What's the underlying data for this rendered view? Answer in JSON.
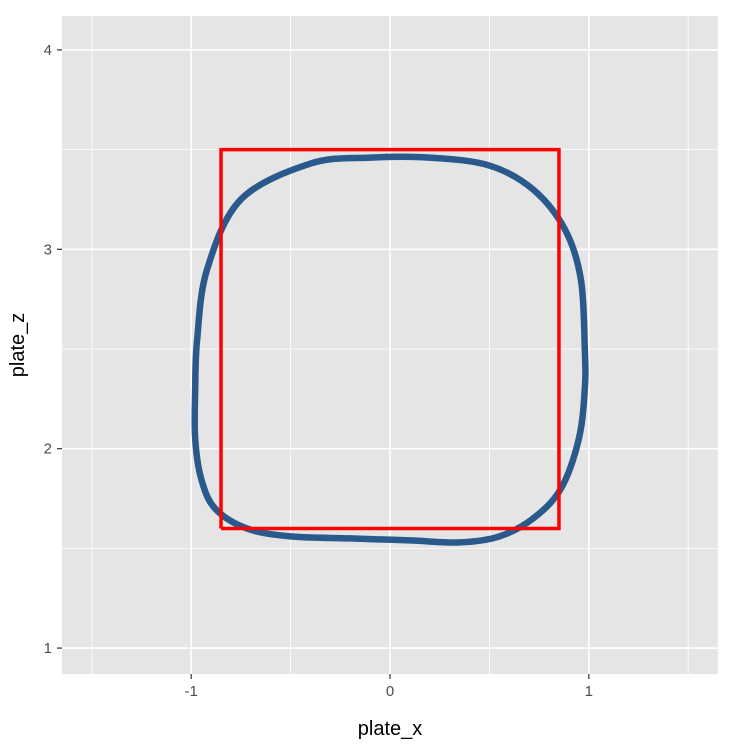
{
  "chart_data": {
    "type": "line",
    "title": "",
    "xlabel": "plate_x",
    "ylabel": "plate_z",
    "xlim": [
      -1.65,
      1.65
    ],
    "ylim": [
      0.87,
      4.17
    ],
    "x_ticks": [
      -1,
      0,
      1
    ],
    "y_ticks": [
      1,
      2,
      3,
      4
    ],
    "grid": true,
    "legend": "none",
    "colors": {
      "panel_background": "#e5e5e5",
      "grid": "#ffffff",
      "contour": "#2a5a8c",
      "strike_zone": "#ff0000",
      "tick_label": "#4d4d4d",
      "axis_title": "#000000"
    },
    "series": [
      {
        "kind": "path",
        "x": [
          -0.1,
          -0.4,
          -0.75,
          -0.92,
          -0.97,
          -0.98,
          -0.98,
          -0.95,
          -0.88,
          -0.72,
          -0.5,
          -0.2,
          0.1,
          0.35,
          0.55,
          0.72,
          0.86,
          0.95,
          0.98,
          0.98,
          0.96,
          0.88,
          0.72,
          0.5,
          0.2,
          -0.1
        ],
        "y": [
          3.46,
          3.43,
          3.25,
          2.9,
          2.55,
          2.3,
          2.05,
          1.85,
          1.7,
          1.6,
          1.56,
          1.55,
          1.54,
          1.53,
          1.56,
          1.65,
          1.8,
          2.05,
          2.3,
          2.5,
          2.85,
          3.1,
          3.3,
          3.42,
          3.46,
          3.46
        ]
      },
      {
        "kind": "rect",
        "x": [
          -0.85,
          0.85,
          0.85,
          -0.85,
          -0.85
        ],
        "y": [
          1.6,
          1.6,
          3.5,
          3.5,
          1.6
        ]
      }
    ]
  }
}
